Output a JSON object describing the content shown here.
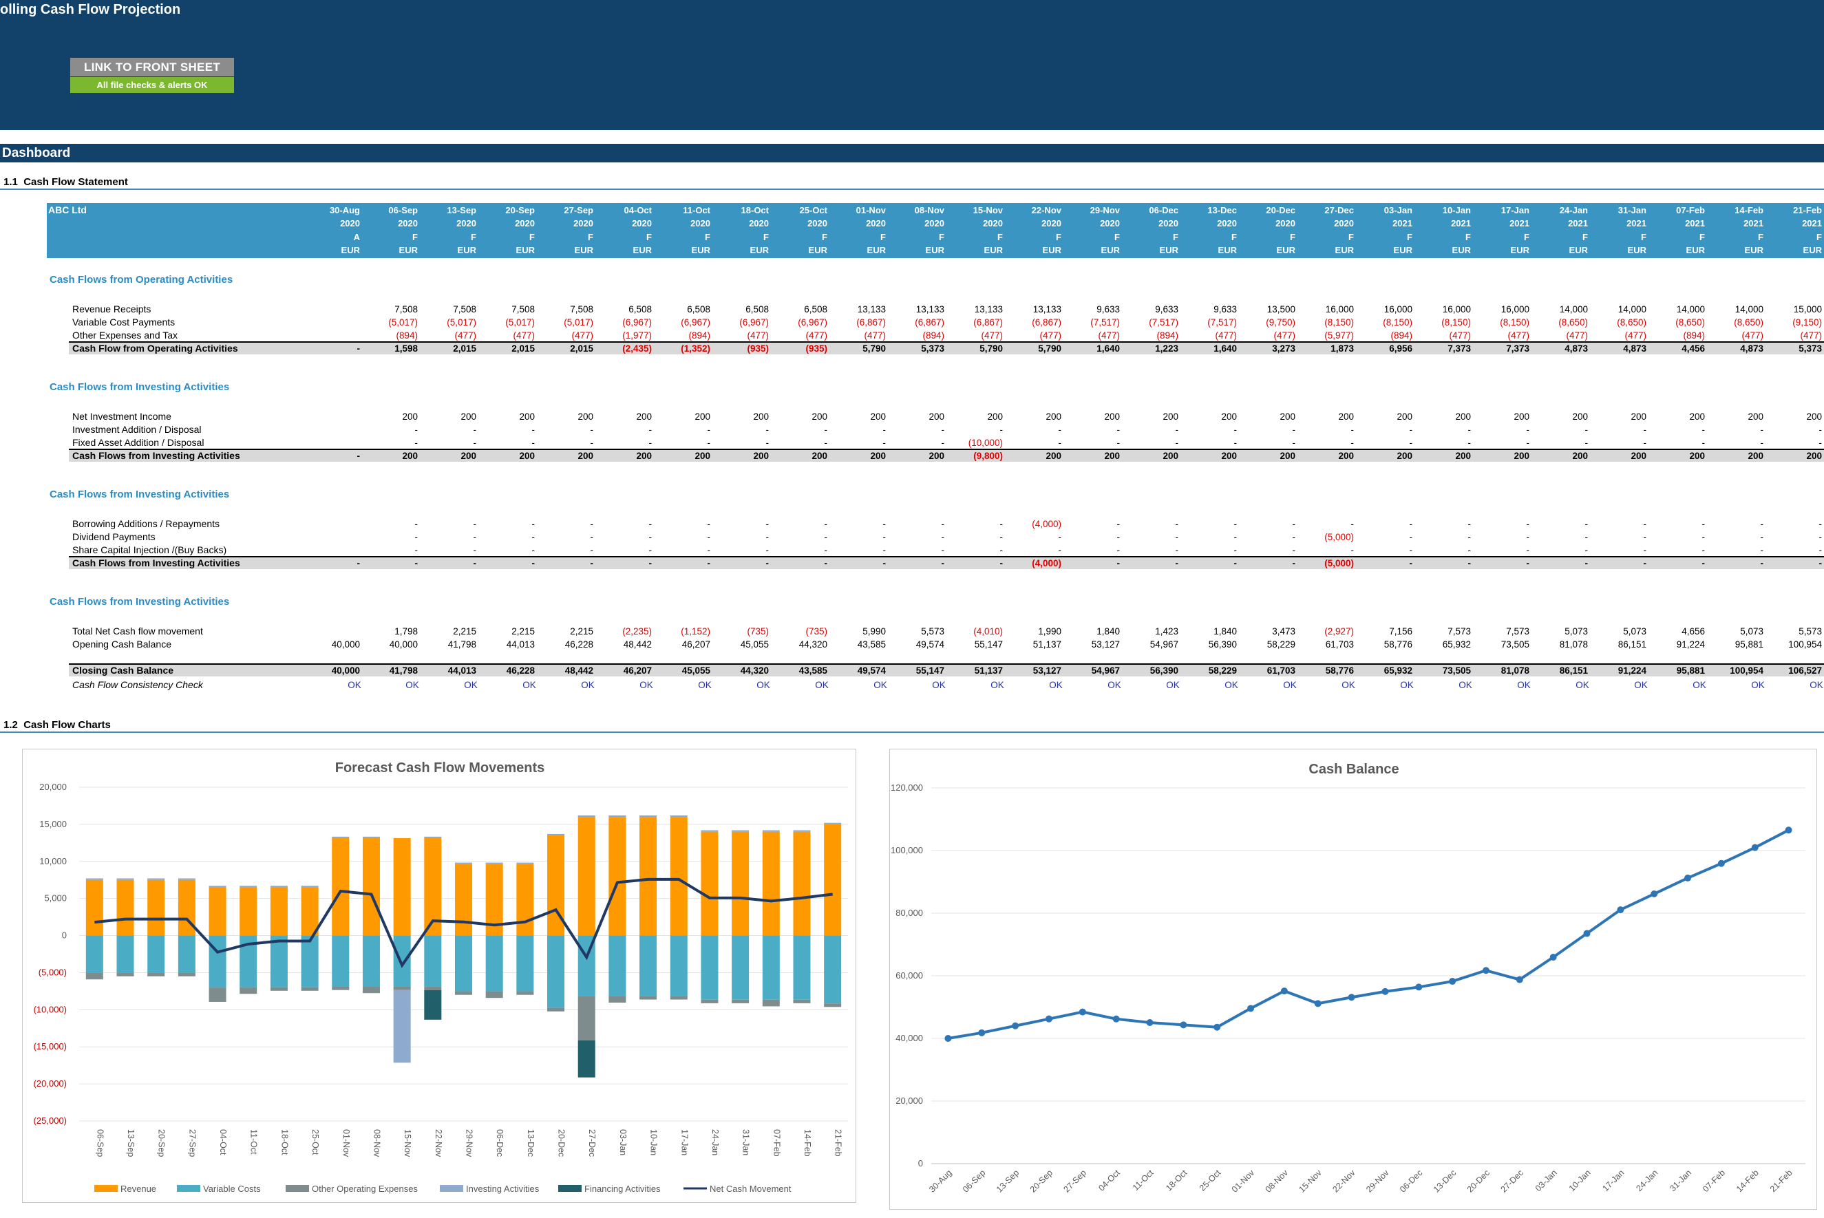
{
  "app": {
    "title": "olling Cash Flow Projection",
    "link_button": "LINK TO FRONT SHEET",
    "checks_status": "All file checks & alerts OK"
  },
  "dashboard": {
    "label": "Dashboard"
  },
  "section1": {
    "num": "1.1",
    "title": "Cash Flow Statement"
  },
  "section2": {
    "num": "1.2",
    "title": "Cash Flow Charts"
  },
  "header": {
    "company": "ABC Ltd",
    "dates": [
      "30-Aug",
      "06-Sep",
      "13-Sep",
      "20-Sep",
      "27-Sep",
      "04-Oct",
      "11-Oct",
      "18-Oct",
      "25-Oct",
      "01-Nov",
      "08-Nov",
      "15-Nov",
      "22-Nov",
      "29-Nov",
      "06-Dec",
      "13-Dec",
      "20-Dec",
      "27-Dec",
      "03-Jan",
      "10-Jan",
      "17-Jan",
      "24-Jan",
      "31-Jan",
      "07-Feb",
      "14-Feb",
      "21-Feb"
    ],
    "years": [
      "2020",
      "2020",
      "2020",
      "2020",
      "2020",
      "2020",
      "2020",
      "2020",
      "2020",
      "2020",
      "2020",
      "2020",
      "2020",
      "2020",
      "2020",
      "2020",
      "2020",
      "2020",
      "2021",
      "2021",
      "2021",
      "2021",
      "2021",
      "2021",
      "2021",
      "2021"
    ],
    "flags": [
      "A",
      "F",
      "F",
      "F",
      "F",
      "F",
      "F",
      "F",
      "F",
      "F",
      "F",
      "F",
      "F",
      "F",
      "F",
      "F",
      "F",
      "F",
      "F",
      "F",
      "F",
      "F",
      "F",
      "F",
      "F",
      "F"
    ],
    "currency": [
      "EUR",
      "EUR",
      "EUR",
      "EUR",
      "EUR",
      "EUR",
      "EUR",
      "EUR",
      "EUR",
      "EUR",
      "EUR",
      "EUR",
      "EUR",
      "EUR",
      "EUR",
      "EUR",
      "EUR",
      "EUR",
      "EUR",
      "EUR",
      "EUR",
      "EUR",
      "EUR",
      "EUR",
      "EUR",
      "EUR"
    ]
  },
  "groups": [
    {
      "title": "Cash Flows from Operating Activities",
      "rows": [
        {
          "label": "Revenue Receipts",
          "values": [
            "",
            "7,508",
            "7,508",
            "7,508",
            "7,508",
            "6,508",
            "6,508",
            "6,508",
            "6,508",
            "13,133",
            "13,133",
            "13,133",
            "13,133",
            "9,633",
            "9,633",
            "9,633",
            "13,500",
            "16,000",
            "16,000",
            "16,000",
            "16,000",
            "14,000",
            "14,000",
            "14,000",
            "14,000",
            "15,000"
          ]
        },
        {
          "label": "Variable Cost Payments",
          "values": [
            "",
            "(5,017)",
            "(5,017)",
            "(5,017)",
            "(5,017)",
            "(6,967)",
            "(6,967)",
            "(6,967)",
            "(6,967)",
            "(6,867)",
            "(6,867)",
            "(6,867)",
            "(6,867)",
            "(7,517)",
            "(7,517)",
            "(7,517)",
            "(9,750)",
            "(8,150)",
            "(8,150)",
            "(8,150)",
            "(8,150)",
            "(8,650)",
            "(8,650)",
            "(8,650)",
            "(8,650)",
            "(9,150)"
          ]
        },
        {
          "label": "Other Expenses and Tax",
          "values": [
            "",
            "(894)",
            "(477)",
            "(477)",
            "(477)",
            "(1,977)",
            "(894)",
            "(477)",
            "(477)",
            "(477)",
            "(894)",
            "(477)",
            "(477)",
            "(477)",
            "(894)",
            "(477)",
            "(477)",
            "(5,977)",
            "(894)",
            "(477)",
            "(477)",
            "(477)",
            "(477)",
            "(894)",
            "(477)",
            "(477)"
          ]
        }
      ],
      "total": {
        "label": "Cash Flow from Operating Activities",
        "values": [
          "-",
          "1,598",
          "2,015",
          "2,015",
          "2,015",
          "(2,435)",
          "(1,352)",
          "(935)",
          "(935)",
          "5,790",
          "5,373",
          "5,790",
          "5,790",
          "1,640",
          "1,223",
          "1,640",
          "3,273",
          "1,873",
          "6,956",
          "7,373",
          "7,373",
          "4,873",
          "4,873",
          "4,456",
          "4,873",
          "5,373"
        ]
      }
    },
    {
      "title": "Cash Flows from Investing Activities",
      "rows": [
        {
          "label": "Net Investment Income",
          "values": [
            "",
            "200",
            "200",
            "200",
            "200",
            "200",
            "200",
            "200",
            "200",
            "200",
            "200",
            "200",
            "200",
            "200",
            "200",
            "200",
            "200",
            "200",
            "200",
            "200",
            "200",
            "200",
            "200",
            "200",
            "200",
            "200"
          ]
        },
        {
          "label": "Investment Addition / Disposal",
          "values": [
            "",
            "-",
            "-",
            "-",
            "-",
            "-",
            "-",
            "-",
            "-",
            "-",
            "-",
            "-",
            "-",
            "-",
            "-",
            "-",
            "-",
            "-",
            "-",
            "-",
            "-",
            "-",
            "-",
            "-",
            "-",
            "-"
          ]
        },
        {
          "label": "Fixed Asset Addition / Disposal",
          "values": [
            "",
            "-",
            "-",
            "-",
            "-",
            "-",
            "-",
            "-",
            "-",
            "-",
            "-",
            "(10,000)",
            "-",
            "-",
            "-",
            "-",
            "-",
            "-",
            "-",
            "-",
            "-",
            "-",
            "-",
            "-",
            "-",
            "-"
          ]
        }
      ],
      "total": {
        "label": "Cash Flows from Investing Activities",
        "values": [
          "-",
          "200",
          "200",
          "200",
          "200",
          "200",
          "200",
          "200",
          "200",
          "200",
          "200",
          "(9,800)",
          "200",
          "200",
          "200",
          "200",
          "200",
          "200",
          "200",
          "200",
          "200",
          "200",
          "200",
          "200",
          "200",
          "200"
        ]
      }
    },
    {
      "title": "Cash Flows from Investing Activities",
      "rows": [
        {
          "label": "Borrowing Additions / Repayments",
          "values": [
            "",
            "-",
            "-",
            "-",
            "-",
            "-",
            "-",
            "-",
            "-",
            "-",
            "-",
            "-",
            "(4,000)",
            "-",
            "-",
            "-",
            "-",
            "-",
            "-",
            "-",
            "-",
            "-",
            "-",
            "-",
            "-",
            "-"
          ]
        },
        {
          "label": "Dividend Payments",
          "values": [
            "",
            "-",
            "-",
            "-",
            "-",
            "-",
            "-",
            "-",
            "-",
            "-",
            "-",
            "-",
            "-",
            "-",
            "-",
            "-",
            "-",
            "(5,000)",
            "-",
            "-",
            "-",
            "-",
            "-",
            "-",
            "-",
            "-"
          ]
        },
        {
          "label": "Share Capital Injection /(Buy Backs)",
          "values": [
            "",
            "-",
            "-",
            "-",
            "-",
            "-",
            "-",
            "-",
            "-",
            "-",
            "-",
            "-",
            "-",
            "-",
            "-",
            "-",
            "-",
            "-",
            "-",
            "-",
            "-",
            "-",
            "-",
            "-",
            "-",
            "-"
          ]
        }
      ],
      "total": {
        "label": "Cash Flows from Investing Activities",
        "values": [
          "-",
          "-",
          "-",
          "-",
          "-",
          "-",
          "-",
          "-",
          "-",
          "-",
          "-",
          "-",
          "(4,000)",
          "-",
          "-",
          "-",
          "-",
          "(5,000)",
          "-",
          "-",
          "-",
          "-",
          "-",
          "-",
          "-",
          "-"
        ]
      }
    },
    {
      "title": "Cash Flows from Investing Activities",
      "rows": [
        {
          "label": "Total Net Cash flow movement",
          "values": [
            "",
            "1,798",
            "2,215",
            "2,215",
            "2,215",
            "(2,235)",
            "(1,152)",
            "(735)",
            "(735)",
            "5,990",
            "5,573",
            "(4,010)",
            "1,990",
            "1,840",
            "1,423",
            "1,840",
            "3,473",
            "(2,927)",
            "7,156",
            "7,573",
            "7,573",
            "5,073",
            "5,073",
            "4,656",
            "5,073",
            "5,573"
          ]
        },
        {
          "label": "Opening Cash Balance",
          "values": [
            "40,000",
            "40,000",
            "41,798",
            "44,013",
            "46,228",
            "48,442",
            "46,207",
            "45,055",
            "44,320",
            "43,585",
            "49,574",
            "55,147",
            "51,137",
            "53,127",
            "54,967",
            "56,390",
            "58,229",
            "61,703",
            "58,776",
            "65,932",
            "73,505",
            "81,078",
            "86,151",
            "91,224",
            "95,881",
            "100,954"
          ]
        }
      ],
      "total": {
        "label": "Closing Cash Balance",
        "values": [
          "40,000",
          "41,798",
          "44,013",
          "46,228",
          "48,442",
          "46,207",
          "45,055",
          "44,320",
          "43,585",
          "49,574",
          "55,147",
          "51,137",
          "53,127",
          "54,967",
          "56,390",
          "58,229",
          "61,703",
          "58,776",
          "65,932",
          "73,505",
          "81,078",
          "86,151",
          "91,224",
          "95,881",
          "100,954",
          "106,527"
        ]
      }
    }
  ],
  "check": {
    "label": "Cash Flow Consistency Check",
    "values": [
      "OK",
      "OK",
      "OK",
      "OK",
      "OK",
      "OK",
      "OK",
      "OK",
      "OK",
      "OK",
      "OK",
      "OK",
      "OK",
      "OK",
      "OK",
      "OK",
      "OK",
      "OK",
      "OK",
      "OK",
      "OK",
      "OK",
      "OK",
      "OK",
      "OK",
      "OK"
    ]
  },
  "chart_data": [
    {
      "type": "bar",
      "title": "Forecast Cash Flow Movements",
      "stacked": true,
      "categories": [
        "06-Sep",
        "13-Sep",
        "20-Sep",
        "27-Sep",
        "04-Oct",
        "11-Oct",
        "18-Oct",
        "25-Oct",
        "01-Nov",
        "08-Nov",
        "15-Nov",
        "22-Nov",
        "29-Nov",
        "06-Dec",
        "13-Dec",
        "20-Dec",
        "27-Dec",
        "03-Jan",
        "10-Jan",
        "17-Jan",
        "24-Jan",
        "31-Jan",
        "07-Feb",
        "14-Feb",
        "21-Feb"
      ],
      "ylim": [
        -25000,
        20000
      ],
      "yticks": [
        "20,000",
        "15,000",
        "10,000",
        "5,000",
        "0",
        "(5,000)",
        "(10,000)",
        "(15,000)",
        "(20,000)",
        "(25,000)"
      ],
      "series": [
        {
          "name": "Revenue",
          "color": "#ff9900",
          "values": [
            7508,
            7508,
            7508,
            7508,
            6508,
            6508,
            6508,
            6508,
            13133,
            13133,
            13133,
            13133,
            9633,
            9633,
            9633,
            13500,
            16000,
            16000,
            16000,
            16000,
            14000,
            14000,
            14000,
            14000,
            15000
          ]
        },
        {
          "name": "Variable Costs",
          "color": "#4bacc6",
          "values": [
            -5017,
            -5017,
            -5017,
            -5017,
            -6967,
            -6967,
            -6967,
            -6967,
            -6867,
            -6867,
            -6867,
            -6867,
            -7517,
            -7517,
            -7517,
            -9750,
            -8150,
            -8150,
            -8150,
            -8150,
            -8650,
            -8650,
            -8650,
            -8650,
            -9150
          ]
        },
        {
          "name": "Other Operating Expenses",
          "color": "#7f8c8d",
          "values": [
            -894,
            -477,
            -477,
            -477,
            -1977,
            -894,
            -477,
            -477,
            -477,
            -894,
            -477,
            -477,
            -477,
            -894,
            -477,
            -477,
            -5977,
            -894,
            -477,
            -477,
            -477,
            -477,
            -894,
            -477,
            -477
          ]
        },
        {
          "name": "Investing Activities",
          "color": "#8eaacc",
          "values": [
            200,
            200,
            200,
            200,
            200,
            200,
            200,
            200,
            200,
            200,
            -9800,
            200,
            200,
            200,
            200,
            200,
            200,
            200,
            200,
            200,
            200,
            200,
            200,
            200,
            200
          ]
        },
        {
          "name": "Financing Activities",
          "color": "#215f6a",
          "values": [
            0,
            0,
            0,
            0,
            0,
            0,
            0,
            0,
            0,
            0,
            0,
            -4000,
            0,
            0,
            0,
            0,
            -5000,
            0,
            0,
            0,
            0,
            0,
            0,
            0,
            0
          ]
        },
        {
          "name": "Net Cash Movement",
          "color": "#1f3864",
          "type": "line",
          "values": [
            1798,
            2215,
            2215,
            2215,
            -2235,
            -1152,
            -735,
            -735,
            5990,
            5573,
            -4010,
            1990,
            1840,
            1423,
            1840,
            3473,
            -2927,
            7156,
            7573,
            7573,
            5073,
            5073,
            4656,
            5073,
            5573
          ]
        }
      ]
    },
    {
      "type": "line",
      "title": "Cash Balance",
      "categories": [
        "30-Aug",
        "06-Sep",
        "13-Sep",
        "20-Sep",
        "27-Sep",
        "04-Oct",
        "11-Oct",
        "18-Oct",
        "25-Oct",
        "01-Nov",
        "08-Nov",
        "15-Nov",
        "22-Nov",
        "29-Nov",
        "06-Dec",
        "13-Dec",
        "20-Dec",
        "27-Dec",
        "03-Jan",
        "10-Jan",
        "17-Jan",
        "24-Jan",
        "31-Jan",
        "07-Feb",
        "14-Feb",
        "21-Feb"
      ],
      "ylim": [
        0,
        120000
      ],
      "yticks": [
        "0",
        "20,000",
        "40,000",
        "60,000",
        "80,000",
        "100,000",
        "120,000"
      ],
      "series": [
        {
          "color": "#2e75b6",
          "values": [
            40000,
            41798,
            44013,
            46228,
            48442,
            46207,
            45055,
            44320,
            43585,
            49574,
            55147,
            51137,
            53127,
            54967,
            56390,
            58229,
            61703,
            58776,
            65932,
            73505,
            81078,
            86151,
            91224,
            95881,
            100954,
            106527
          ]
        }
      ]
    }
  ]
}
